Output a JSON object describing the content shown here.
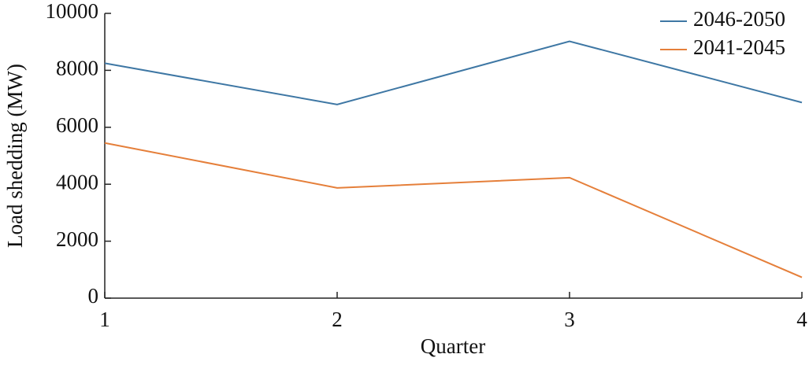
{
  "chart_data": {
    "type": "line",
    "x_label": "Quarter",
    "y_label": "Load shedding (MW)",
    "x": [
      1,
      2,
      3,
      4
    ],
    "series": [
      {
        "name": "2046-2050",
        "color": "#3e77a4",
        "values": [
          8250,
          6800,
          9020,
          6870
        ]
      },
      {
        "name": "2041-2045",
        "color": "#e57f3a",
        "values": [
          5450,
          3870,
          4230,
          730
        ]
      }
    ],
    "xlim": [
      1,
      4
    ],
    "xticks": [
      1,
      2,
      3,
      4
    ],
    "ylim": [
      0,
      10000
    ],
    "yticks": [
      0,
      2000,
      4000,
      6000,
      8000,
      10000
    ],
    "grid": false,
    "legend": "upper-right"
  }
}
